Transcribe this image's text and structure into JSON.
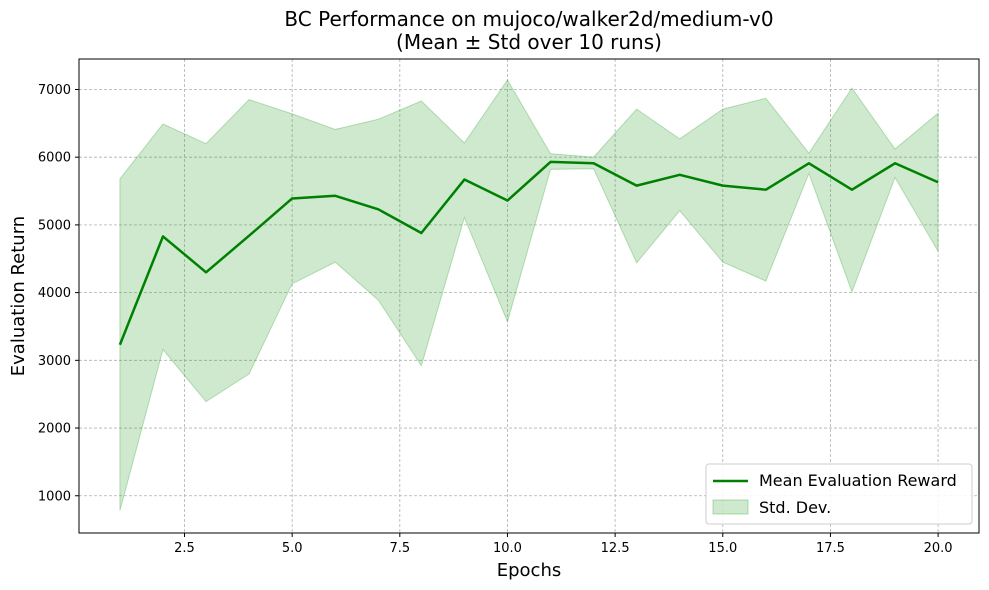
{
  "colors": {
    "mean_line": "#008000",
    "band_fill": "#2ca02c",
    "band_opacity": 0.23,
    "grid": "#b0b0b0"
  },
  "chart_data": {
    "type": "line",
    "title": "BC Performance on mujoco/walker2d/medium-v0",
    "subtitle": "(Mean ± Std over 10 runs)",
    "xlabel": "Epochs",
    "ylabel": "Evaluation Return",
    "xlim": [
      0.05,
      20.95
    ],
    "ylim": [
      450,
      7450
    ],
    "xticks": [
      2.5,
      5.0,
      7.5,
      10.0,
      12.5,
      15.0,
      17.5,
      20.0
    ],
    "xtick_labels": [
      "2.5",
      "5.0",
      "7.5",
      "10.0",
      "12.5",
      "15.0",
      "17.5",
      "20.0"
    ],
    "yticks": [
      1000,
      2000,
      3000,
      4000,
      5000,
      6000,
      7000
    ],
    "ytick_labels": [
      "1000",
      "2000",
      "3000",
      "4000",
      "5000",
      "6000",
      "7000"
    ],
    "grid": true,
    "legend_position": "bottom-right",
    "x": [
      1,
      2,
      3,
      4,
      5,
      6,
      7,
      8,
      9,
      10,
      11,
      12,
      13,
      14,
      15,
      16,
      17,
      18,
      19,
      20
    ],
    "series": [
      {
        "name": "Mean Evaluation Reward",
        "kind": "line",
        "values": [
          3230,
          4830,
          4300,
          4840,
          5390,
          5430,
          5230,
          4880,
          5670,
          5360,
          5930,
          5910,
          5580,
          5740,
          5580,
          5520,
          5910,
          5520,
          5910,
          5630
        ]
      },
      {
        "name": "Std. Dev.",
        "kind": "band",
        "upper": [
          5680,
          6490,
          6200,
          6850,
          6640,
          6410,
          6560,
          6830,
          6210,
          7140,
          6050,
          6000,
          6710,
          6270,
          6710,
          6870,
          6060,
          7020,
          6120,
          6650
        ],
        "lower": [
          780,
          3160,
          2390,
          2800,
          4130,
          4450,
          3890,
          2920,
          5110,
          3570,
          5820,
          5830,
          4440,
          5210,
          4450,
          4170,
          5760,
          4010,
          5700,
          4610
        ]
      }
    ]
  }
}
